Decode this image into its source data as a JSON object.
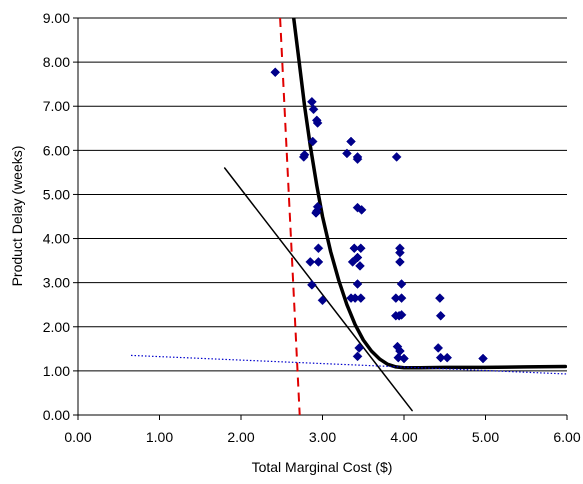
{
  "chart_data": {
    "type": "scatter",
    "title": "",
    "xlabel": "Total Marginal Cost ($)",
    "ylabel": "Product Delay (weeks)",
    "xlim": [
      0,
      6
    ],
    "ylim": [
      0,
      9
    ],
    "x_ticks": [
      "0.00",
      "1.00",
      "2.00",
      "3.00",
      "4.00",
      "5.00",
      "6.00"
    ],
    "y_ticks": [
      "0.00",
      "1.00",
      "2.00",
      "3.00",
      "4.00",
      "5.00",
      "6.00",
      "7.00",
      "8.00",
      "9.00"
    ],
    "grid": "horizontal",
    "legend": "none",
    "series": [
      {
        "type": "scatter",
        "marker": "diamond",
        "color": "#00008b",
        "points": [
          [
            2.42,
            7.77
          ],
          [
            2.87,
            7.1
          ],
          [
            2.89,
            6.93
          ],
          [
            2.93,
            6.68
          ],
          [
            2.94,
            6.62
          ],
          [
            2.88,
            6.2
          ],
          [
            2.78,
            5.9
          ],
          [
            2.77,
            5.85
          ],
          [
            3.3,
            5.93
          ],
          [
            3.35,
            6.2
          ],
          [
            3.43,
            5.85
          ],
          [
            3.43,
            5.8
          ],
          [
            3.91,
            5.85
          ],
          [
            2.94,
            4.72
          ],
          [
            2.93,
            4.62
          ],
          [
            2.92,
            4.58
          ],
          [
            3.43,
            4.7
          ],
          [
            3.48,
            4.65
          ],
          [
            2.95,
            3.78
          ],
          [
            3.39,
            3.78
          ],
          [
            3.47,
            3.78
          ],
          [
            3.95,
            3.78
          ],
          [
            3.95,
            3.68
          ],
          [
            2.85,
            3.47
          ],
          [
            2.95,
            3.47
          ],
          [
            3.37,
            3.47
          ],
          [
            3.43,
            3.57
          ],
          [
            3.46,
            3.38
          ],
          [
            3.95,
            3.47
          ],
          [
            3.97,
            2.97
          ],
          [
            2.87,
            2.95
          ],
          [
            3.43,
            2.97
          ],
          [
            3.0,
            2.6
          ],
          [
            3.35,
            2.65
          ],
          [
            3.4,
            2.65
          ],
          [
            3.47,
            2.65
          ],
          [
            3.9,
            2.65
          ],
          [
            3.97,
            2.65
          ],
          [
            4.44,
            2.65
          ],
          [
            3.9,
            2.25
          ],
          [
            3.94,
            2.25
          ],
          [
            3.97,
            2.27
          ],
          [
            4.45,
            2.25
          ],
          [
            3.45,
            1.52
          ],
          [
            3.92,
            1.55
          ],
          [
            3.95,
            1.45
          ],
          [
            4.42,
            1.52
          ],
          [
            3.43,
            1.33
          ],
          [
            3.93,
            1.3
          ],
          [
            4.0,
            1.28
          ],
          [
            4.45,
            1.3
          ],
          [
            4.53,
            1.3
          ],
          [
            4.97,
            1.28
          ]
        ]
      },
      {
        "type": "curve",
        "style": "thick solid",
        "color": "#000000",
        "points": [
          [
            2.62,
            9.4
          ],
          [
            2.7,
            8.2
          ],
          [
            2.78,
            7.0
          ],
          [
            2.85,
            6.1
          ],
          [
            2.93,
            5.2
          ],
          [
            3.0,
            4.5
          ],
          [
            3.1,
            3.7
          ],
          [
            3.2,
            3.05
          ],
          [
            3.3,
            2.5
          ],
          [
            3.4,
            2.05
          ],
          [
            3.5,
            1.7
          ],
          [
            3.6,
            1.45
          ],
          [
            3.7,
            1.27
          ],
          [
            3.8,
            1.15
          ],
          [
            3.9,
            1.09
          ],
          [
            4.0,
            1.07
          ],
          [
            4.2,
            1.07
          ],
          [
            4.5,
            1.08
          ],
          [
            5.0,
            1.08
          ],
          [
            5.5,
            1.09
          ],
          [
            5.98,
            1.1
          ]
        ]
      },
      {
        "type": "line",
        "style": "thin solid",
        "color": "#000000",
        "points": [
          [
            1.8,
            5.6
          ],
          [
            4.1,
            0.1
          ]
        ]
      },
      {
        "type": "line",
        "style": "dashed",
        "color": "#e00000",
        "points": [
          [
            2.48,
            9.0
          ],
          [
            2.72,
            0.0
          ]
        ]
      },
      {
        "type": "line",
        "style": "dotted",
        "color": "#0000cc",
        "points": [
          [
            0.65,
            1.35
          ],
          [
            6.0,
            0.93
          ]
        ]
      }
    ]
  }
}
